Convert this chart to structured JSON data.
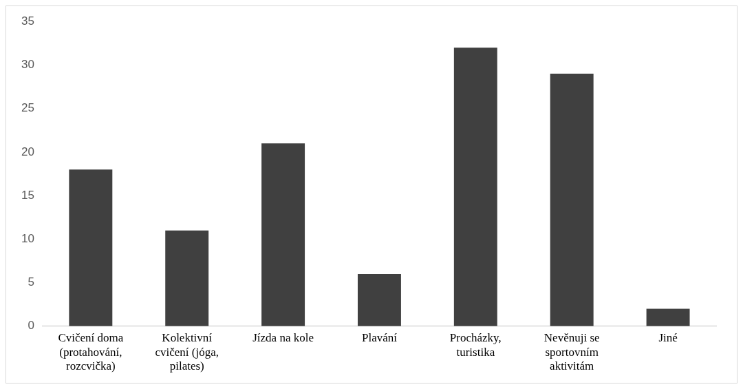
{
  "chart_data": {
    "type": "bar",
    "categories": [
      "Cvičení doma (protahování, rozcvička)",
      "Kolektivní cvičení (jóga, pilates)",
      "Jízda na kole",
      "Plavání",
      "Procházky, turistika",
      "Nevěnuji se sportovním aktivitám",
      "Jiné"
    ],
    "values": [
      18,
      11,
      21,
      6,
      32,
      29,
      2
    ],
    "color": "#404040",
    "ylim": [
      0,
      35
    ],
    "yticks": [
      0,
      5,
      10,
      15,
      20,
      25,
      30,
      35
    ],
    "grid": false,
    "legend": false
  }
}
